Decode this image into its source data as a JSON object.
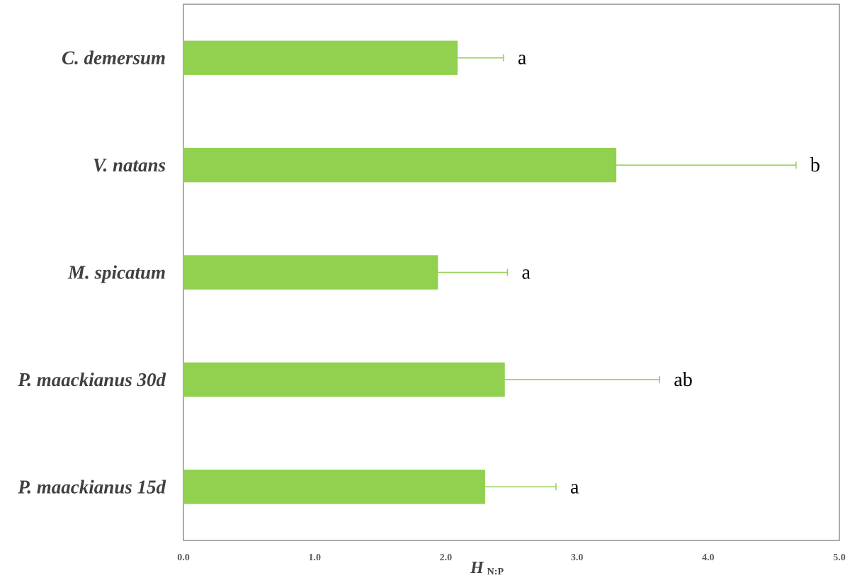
{
  "chart_data": {
    "type": "bar",
    "orientation": "horizontal",
    "categories": [
      "C. demersum",
      "V. natans",
      "M. spicatum",
      "P. maackianus 30d",
      "P. maackianus 15d"
    ],
    "values": [
      2.09,
      3.3,
      1.94,
      2.45,
      2.3
    ],
    "error_plus": [
      0.35,
      1.37,
      0.53,
      1.18,
      0.54
    ],
    "significance_letters": [
      "a",
      "b",
      "a",
      "ab",
      "a"
    ],
    "xlabel": "H",
    "xlabel_subscript": "N:P",
    "xlim": [
      0,
      5
    ],
    "xticks": [
      "0.0",
      "1.0",
      "2.0",
      "3.0",
      "4.0",
      "5.0"
    ],
    "grid": false,
    "bar_color": "#92d050",
    "error_color": "#92d050",
    "frame_color": "#7f7f7f"
  }
}
